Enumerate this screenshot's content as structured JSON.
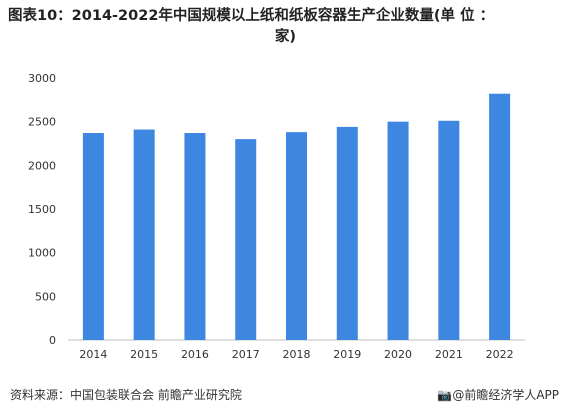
{
  "title_line1": "图表10：2014-2022年中国规模以上纸和纸板容器生产企业数量(单 位 ：",
  "title_line2": "家)",
  "source": "资料来源：中国包装联合会 前瞻产业研究院",
  "brand": "@前瞻经济学人APP",
  "brand_icon": "camera-logo-icon",
  "colors": {
    "bar": "#3d87e0",
    "axis": "#bfbfbf",
    "text": "#333333"
  },
  "chart_data": {
    "type": "bar",
    "categories": [
      "2014",
      "2015",
      "2016",
      "2017",
      "2018",
      "2019",
      "2020",
      "2021",
      "2022"
    ],
    "values": [
      2370,
      2410,
      2370,
      2300,
      2380,
      2440,
      2500,
      2510,
      2820
    ],
    "ylim": [
      0,
      3000
    ],
    "yticks": [
      "0",
      "500",
      "1000",
      "1500",
      "2000",
      "2500",
      "3000"
    ],
    "grid": false
  }
}
